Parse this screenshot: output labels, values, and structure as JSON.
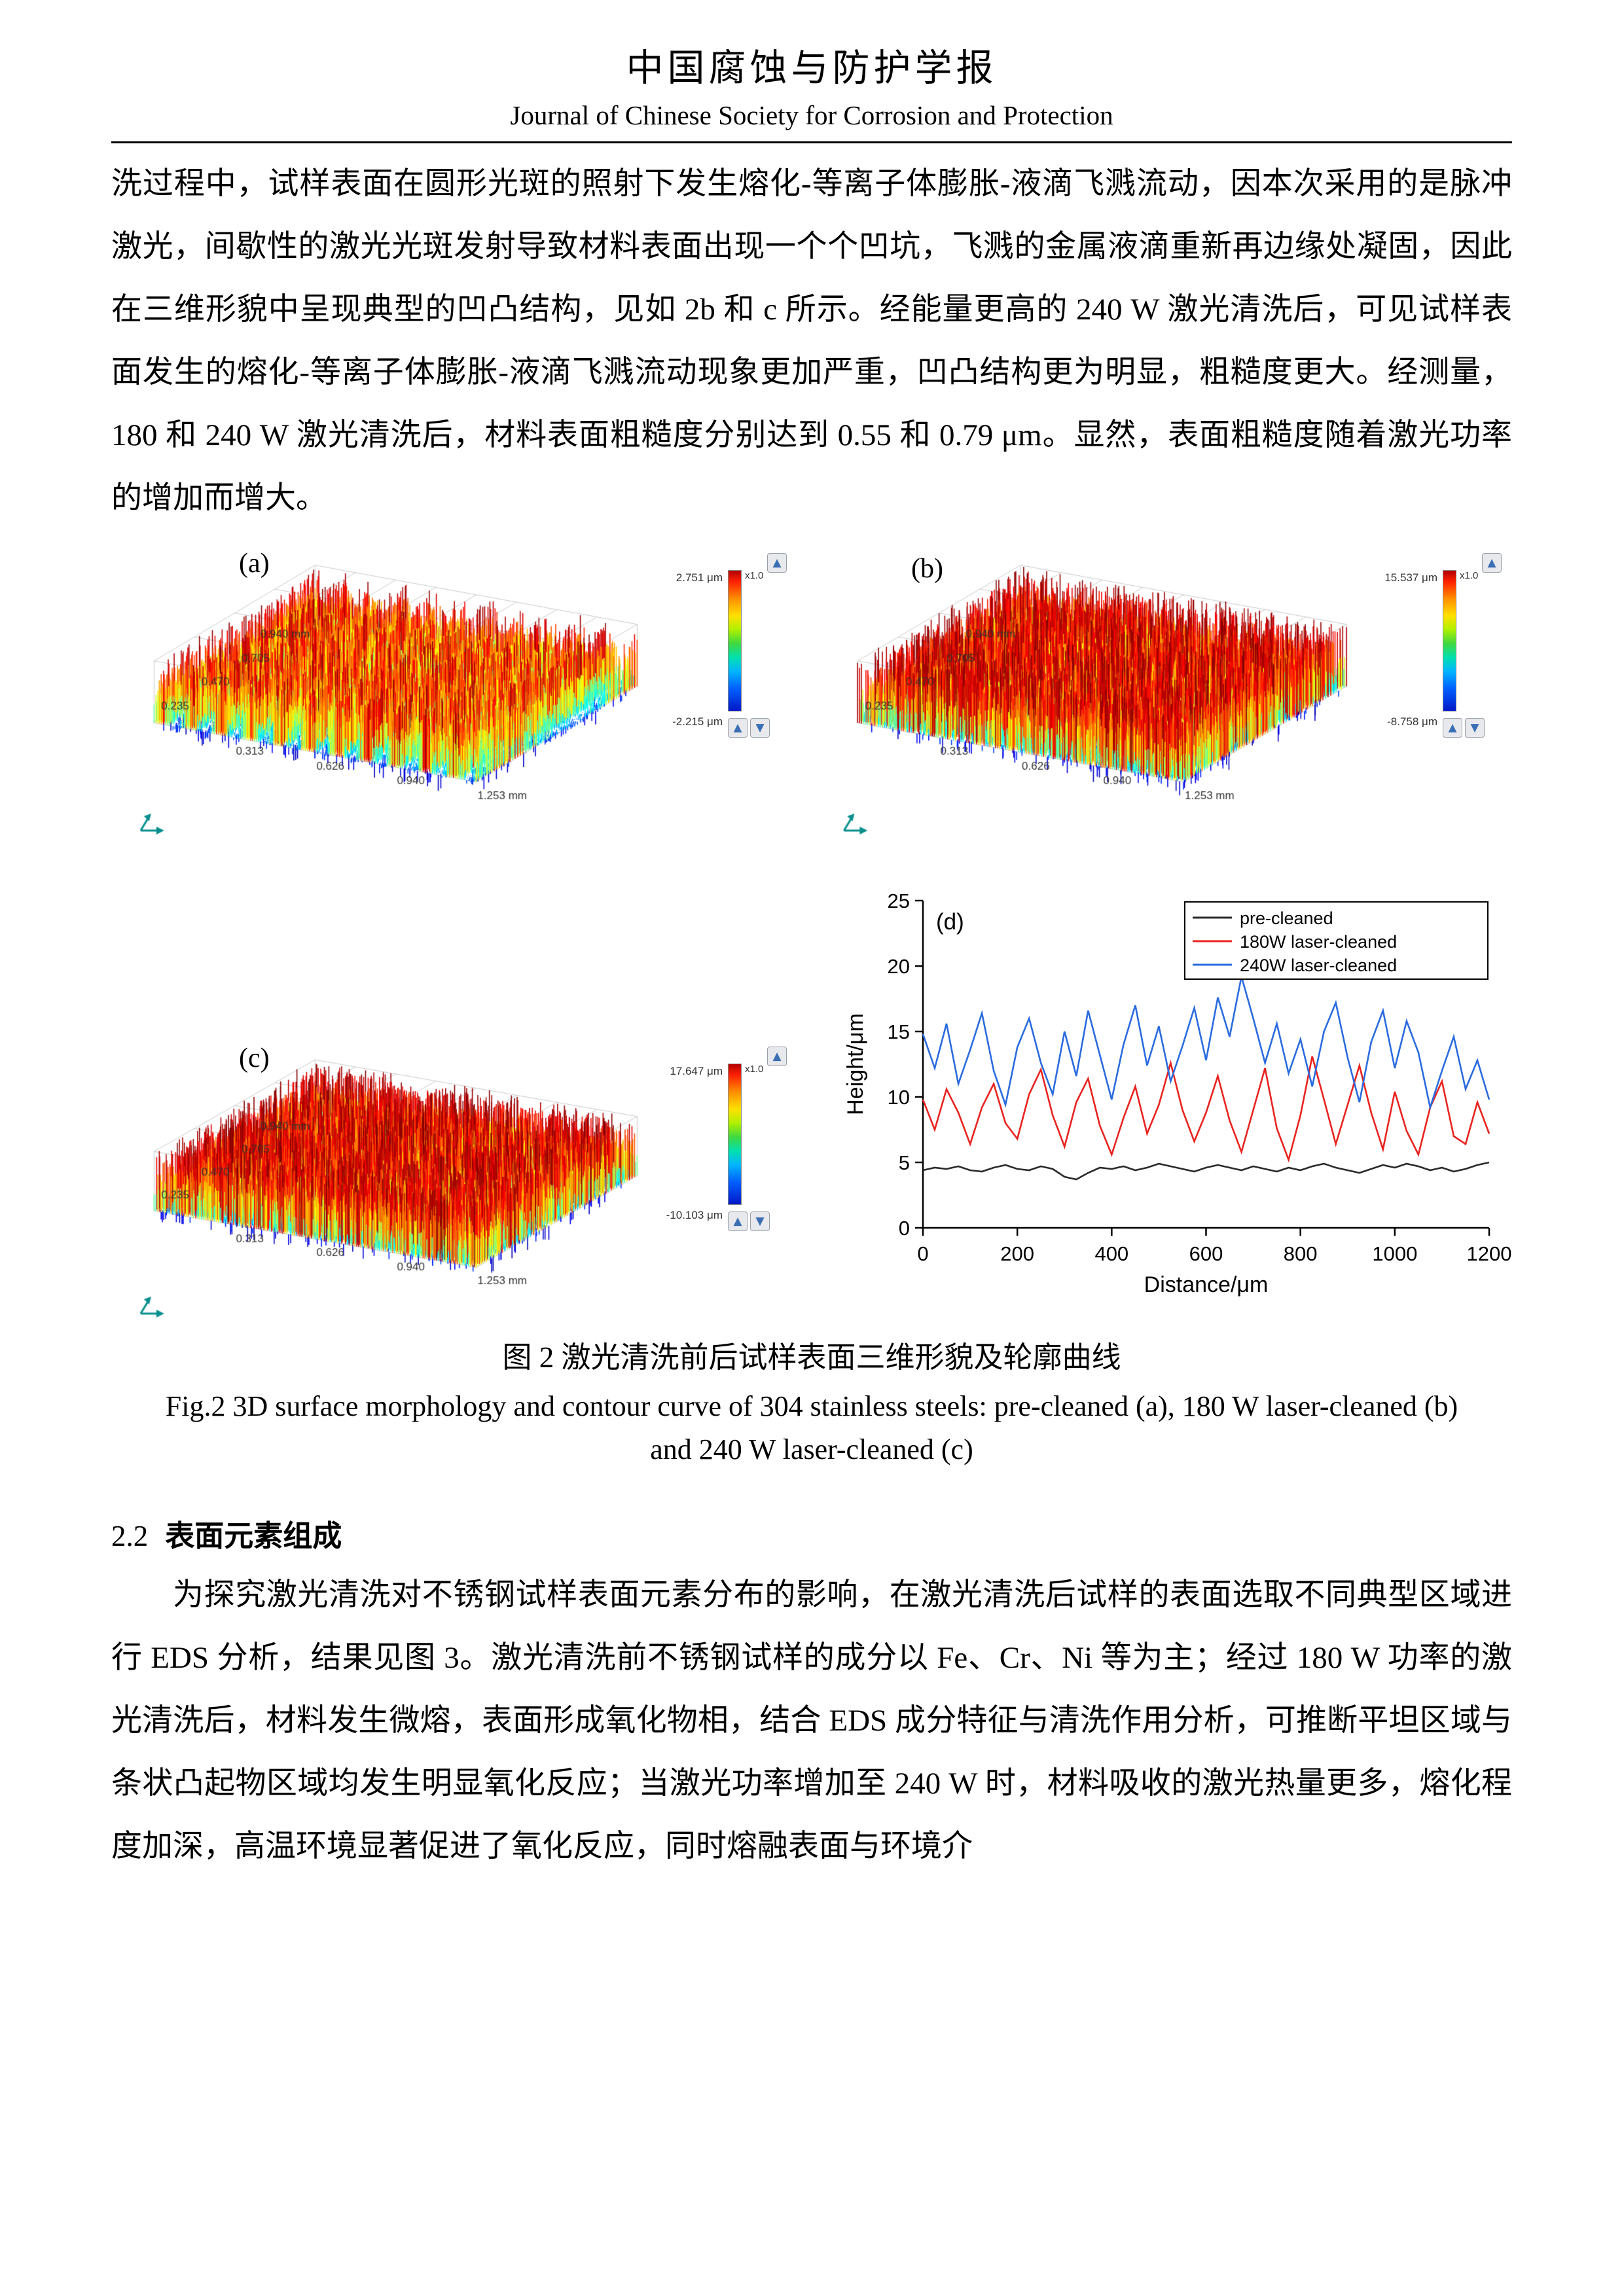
{
  "header": {
    "title_cn": "中国腐蚀与防护学报",
    "title_en": "Journal of Chinese Society for Corrosion and Protection"
  },
  "paragraphs": {
    "p1": "洗过程中，试样表面在圆形光斑的照射下发生熔化-等离子体膨胀-液滴飞溅流动，因本次采用的是脉冲激光，间歇性的激光光斑发射导致材料表面出现一个个凹坑，飞溅的金属液滴重新再边缘处凝固，因此在三维形貌中呈现典型的凹凸结构，见如 2b 和 c 所示。经能量更高的 240 W 激光清洗后，可见试样表面发生的熔化-等离子体膨胀-液滴飞溅流动现象更加严重，凹凸结构更为明显，粗糙度更大。经测量，180 和 240 W 激光清洗后，材料表面粗糙度分别达到 0.55 和 0.79 μm。显然，表面粗糙度随着激光功率的增加而增大。",
    "p2": "为探究激光清洗对不锈钢试样表面元素分布的影响，在激光清洗后试样的表面选取不同典型区域进行 EDS 分析，结果见图 3。激光清洗前不锈钢试样的成分以 Fe、Cr、Ni 等为主；经过 180 W 功率的激光清洗后，材料发生微熔，表面形成氧化物相，结合 EDS 成分特征与清洗作用分析，可推断平坦区域与条状凸起物区域均发生明显氧化反应；当激光功率增加至 240 W 时，材料吸收的激光热量更多，熔化程度加深，高温环境显著促进了氧化反应，同时熔融表面与环境介"
  },
  "section": {
    "number": "2.2",
    "title": "表面元素组成"
  },
  "figure": {
    "caption_cn": "图 2  激光清洗前后试样表面三维形貌及轮廓曲线",
    "caption_en": "Fig.2 3D surface morphology and contour curve of 304 stainless steels: pre-cleaned (a), 180 W laser-cleaned (b) and 240 W laser-cleaned (c)",
    "subfigs": {
      "a": {
        "label": "(a)",
        "cb_max": "2.751 μm",
        "cb_min": "-2.215 μm",
        "scale": "x1.0"
      },
      "b": {
        "label": "(b)",
        "cb_max": "15.537 μm",
        "cb_min": "-8.758 μm",
        "scale": "x1.0"
      },
      "c": {
        "label": "(c)",
        "cb_max": "17.647 μm",
        "cb_min": "-10.103 μm",
        "scale": "x1.0"
      },
      "d": {
        "label": "(d)"
      }
    },
    "axis3d": {
      "left_labels": [
        "0.940 mm",
        "0.705",
        "0.470",
        "0.235"
      ],
      "bottom_labels": [
        "0.313",
        "0.626",
        "0.940",
        "1.253 mm"
      ]
    }
  },
  "icons": {
    "up": "▲",
    "down": "▼"
  },
  "chart_data": {
    "type": "line",
    "title": "",
    "xlabel": "Distance/μm",
    "ylabel": "Height/μm",
    "xlim": [
      0,
      1200
    ],
    "ylim": [
      0,
      25
    ],
    "xticks": [
      0,
      200,
      400,
      600,
      800,
      1000,
      1200
    ],
    "yticks": [
      0,
      5,
      10,
      15,
      20,
      25
    ],
    "legend_position": "top-right",
    "grid": false,
    "x": [
      0,
      25,
      50,
      75,
      100,
      125,
      150,
      175,
      200,
      225,
      250,
      275,
      300,
      325,
      350,
      375,
      400,
      425,
      450,
      475,
      500,
      525,
      550,
      575,
      600,
      625,
      650,
      675,
      700,
      725,
      750,
      775,
      800,
      825,
      850,
      875,
      900,
      925,
      950,
      975,
      1000,
      1025,
      1050,
      1075,
      1100,
      1125,
      1150,
      1175,
      1200
    ],
    "series": [
      {
        "name": "pre-cleaned",
        "color": "#2b2b2b",
        "values": [
          4.4,
          4.6,
          4.5,
          4.7,
          4.4,
          4.3,
          4.6,
          4.8,
          4.5,
          4.4,
          4.7,
          4.5,
          3.9,
          3.7,
          4.2,
          4.6,
          4.5,
          4.7,
          4.4,
          4.6,
          4.9,
          4.7,
          4.5,
          4.3,
          4.6,
          4.8,
          4.6,
          4.4,
          4.7,
          4.5,
          4.3,
          4.6,
          4.4,
          4.7,
          4.9,
          4.6,
          4.4,
          4.2,
          4.5,
          4.8,
          4.6,
          4.9,
          4.7,
          4.4,
          4.6,
          4.3,
          4.5,
          4.8,
          5.0
        ]
      },
      {
        "name": "180W laser-cleaned",
        "color": "#e8231f",
        "values": [
          9.8,
          7.5,
          10.6,
          8.8,
          6.4,
          9.2,
          11.0,
          8.0,
          6.8,
          10.2,
          12.1,
          8.6,
          6.2,
          9.6,
          11.4,
          7.8,
          5.6,
          8.4,
          10.8,
          7.2,
          9.4,
          12.6,
          9.0,
          6.6,
          8.8,
          11.6,
          8.2,
          5.8,
          9.0,
          12.2,
          7.6,
          5.2,
          8.6,
          13.1,
          9.8,
          6.4,
          9.4,
          12.4,
          8.8,
          6.0,
          10.4,
          7.4,
          5.6,
          9.2,
          11.2,
          7.0,
          6.4,
          9.6,
          7.2
        ]
      },
      {
        "name": "240W laser-cleaned",
        "color": "#2a6bdf",
        "values": [
          14.8,
          12.2,
          15.6,
          11.0,
          13.6,
          16.4,
          12.0,
          9.4,
          13.8,
          16.0,
          12.6,
          10.2,
          15.0,
          11.6,
          16.6,
          13.2,
          9.8,
          14.0,
          17.0,
          12.4,
          15.4,
          11.2,
          13.9,
          16.8,
          12.8,
          17.6,
          14.6,
          19.2,
          16.0,
          12.6,
          15.6,
          11.8,
          14.4,
          10.8,
          15.0,
          17.2,
          13.0,
          9.6,
          14.2,
          16.6,
          12.2,
          15.8,
          13.4,
          9.2,
          12.0,
          14.6,
          10.6,
          12.8,
          9.8
        ]
      }
    ]
  }
}
